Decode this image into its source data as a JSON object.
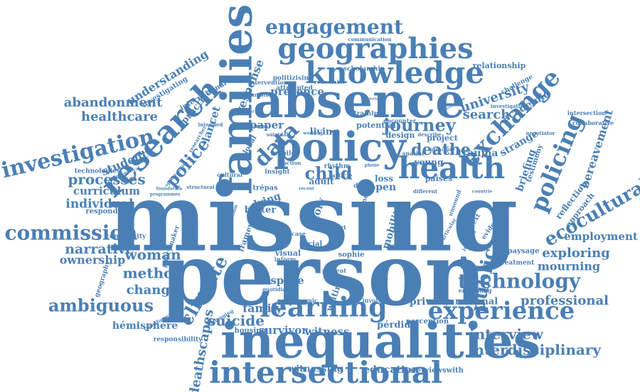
{
  "colors": {
    "primary": "#4a7fb5",
    "background": "#ffffff"
  },
  "words": [
    {
      "text": "missing",
      "weight": 100
    },
    {
      "text": "person",
      "weight": 96
    },
    {
      "text": "inequalities",
      "weight": 70
    },
    {
      "text": "absence",
      "weight": 64
    },
    {
      "text": "families",
      "weight": 62
    },
    {
      "text": "policy",
      "weight": 55
    },
    {
      "text": "research",
      "weight": 50
    },
    {
      "text": "intersectional",
      "weight": 46
    },
    {
      "text": "knowledge",
      "weight": 44
    },
    {
      "text": "geographies",
      "weight": 42
    },
    {
      "text": "health",
      "weight": 40
    },
    {
      "text": "learning",
      "weight": 40
    },
    {
      "text": "investigation",
      "weight": 38
    },
    {
      "text": "experience",
      "weight": 38
    },
    {
      "text": "policing",
      "weight": 36
    },
    {
      "text": "exchange",
      "weight": 36
    },
    {
      "text": "commission",
      "weight": 34
    },
    {
      "text": "engagement",
      "weight": 32
    },
    {
      "text": "technology",
      "weight": 32
    },
    {
      "text": "ecocultural",
      "weight": 30
    },
    {
      "text": "climate",
      "weight": 30
    },
    {
      "text": "data",
      "weight": 30
    },
    {
      "text": "police",
      "weight": 28
    },
    {
      "text": "public",
      "weight": 28
    },
    {
      "text": "child",
      "weight": 28
    },
    {
      "text": "journey",
      "weight": 26
    },
    {
      "text": "ambiguous",
      "weight": 26
    },
    {
      "text": "woman",
      "weight": 26
    },
    {
      "text": "deathe",
      "weight": 26
    },
    {
      "text": "interdisciplinary",
      "weight": 24
    },
    {
      "text": "suicide",
      "weight": 24
    },
    {
      "text": "interview",
      "weight": 24
    },
    {
      "text": "abandonment",
      "weight": 22
    },
    {
      "text": "processes",
      "weight": 22
    },
    {
      "text": "narrative",
      "weight": 22
    },
    {
      "text": "method",
      "weight": 22
    },
    {
      "text": "change",
      "weight": 22
    },
    {
      "text": "healthcare",
      "weight": 22
    },
    {
      "text": "professional",
      "weight": 22
    },
    {
      "text": "exploring",
      "weight": 22
    },
    {
      "text": "mourning",
      "weight": 20
    },
    {
      "text": "search",
      "weight": 20
    },
    {
      "text": "university",
      "weight": 20
    },
    {
      "text": "deathscapes",
      "weight": 20
    },
    {
      "text": "understanding",
      "weight": 20
    },
    {
      "text": "ownership",
      "weight": 20
    },
    {
      "text": "individual",
      "weight": 20
    },
    {
      "text": "family",
      "weight": 20
    },
    {
      "text": "bereavement",
      "weight": 20
    },
    {
      "text": "response",
      "weight": 20
    },
    {
      "text": "student",
      "weight": 20
    },
    {
      "text": "survivor",
      "weight": 18
    },
    {
      "text": "presence",
      "weight": 18
    },
    {
      "text": "employment",
      "weight": 18
    },
    {
      "text": "witness",
      "weight": 18
    },
    {
      "text": "curriculum",
      "weight": 18
    },
    {
      "text": "paper",
      "weight": 18
    },
    {
      "text": "living",
      "weight": 18
    },
    {
      "text": "briefing",
      "weight": 18
    },
    {
      "text": "lancet",
      "weight": 18
    },
    {
      "text": "mobility",
      "weight": 18
    },
    {
      "text": "space",
      "weight": 18
    },
    {
      "text": "education",
      "weight": 18
    },
    {
      "text": "privacy",
      "weight": 18
    },
    {
      "text": "trauma",
      "weight": 18
    },
    {
      "text": "strange",
      "weight": 18
    },
    {
      "text": "hémisphère",
      "weight": 16
    },
    {
      "text": "national",
      "weight": 16
    },
    {
      "text": "witnessing",
      "weight": 16
    },
    {
      "text": "dying",
      "weight": 16
    },
    {
      "text": "story",
      "weight": 16
    },
    {
      "text": "open",
      "weight": 16
    },
    {
      "text": "academic",
      "weight": 16
    },
    {
      "text": "young",
      "weight": 14
    },
    {
      "text": "practice",
      "weight": 14
    },
    {
      "text": "relationship",
      "weight": 14
    },
    {
      "text": "reflection",
      "weight": 14
    },
    {
      "text": "approach",
      "weight": 14
    },
    {
      "text": "pérdida",
      "weight": 14
    },
    {
      "text": "writing",
      "weight": 14
    },
    {
      "text": "better",
      "weight": 14
    },
    {
      "text": "adult",
      "weight": 14
    },
    {
      "text": "loss",
      "weight": 14
    },
    {
      "text": "paises",
      "weight": 14
    },
    {
      "text": "framework",
      "weight": 12
    },
    {
      "text": "social",
      "weight": 12
    },
    {
      "text": "visual",
      "weight": 12
    },
    {
      "text": "sophie",
      "weight": 12
    },
    {
      "text": "design",
      "weight": 12
    },
    {
      "text": "potential",
      "weight": 12
    },
    {
      "text": "project",
      "weight": 12
    },
    {
      "text": "perception",
      "weight": 12
    },
    {
      "text": "interviewswith",
      "weight": 10
    },
    {
      "text": "responding",
      "weight": 12
    },
    {
      "text": "paysage",
      "weight": 12
    },
    {
      "text": "treatment",
      "weight": 10
    },
    {
      "text": "testimony",
      "weight": 12
    },
    {
      "text": "collaborative",
      "weight": 10
    },
    {
      "text": "intersection",
      "weight": 10
    },
    {
      "text": "challenge",
      "weight": 10
    },
    {
      "text": "investigative",
      "weight": 8
    },
    {
      "text": "scholarship",
      "weight": 10
    },
    {
      "text": "politizising",
      "weight": 10
    },
    {
      "text": "attempted",
      "weight": 10
    },
    {
      "text": "intervention",
      "weight": 10
    },
    {
      "text": "roundtable",
      "weight": 8
    },
    {
      "text": "communication",
      "weight": 8
    },
    {
      "text": "international",
      "weight": 12
    },
    {
      "text": "investigating",
      "weight": 10
    },
    {
      "text": "technologies",
      "weight": 10
    },
    {
      "text": "community",
      "weight": 10
    },
    {
      "text": "geography",
      "weight": 10
    },
    {
      "text": "policymaker",
      "weight": 10
    },
    {
      "text": "responsibility",
      "weight": 10
    },
    {
      "text": "transformative",
      "weight": 8
    },
    {
      "text": "housing",
      "weight": 12
    },
    {
      "text": "challenging",
      "weight": 8
    },
    {
      "text": "quotidian",
      "weight": 8
    },
    {
      "text": "dynamic",
      "weight": 10
    },
    {
      "text": "involving",
      "weight": 10
    },
    {
      "text": "present",
      "weight": 10
    },
    {
      "text": "enlivening",
      "weight": 10
    },
    {
      "text": "evidence",
      "weight": 12
    },
    {
      "text": "negotiator",
      "weight": 8
    },
    {
      "text": "global",
      "weight": 12
    },
    {
      "text": "trépas",
      "weight": 12
    },
    {
      "text": "cultural",
      "weight": 10
    },
    {
      "text": "structural",
      "weight": 8
    },
    {
      "text": "researcher",
      "weight": 8
    },
    {
      "text": "business",
      "weight": 8
    },
    {
      "text": "suicidal",
      "weight": 8
    },
    {
      "text": "intended",
      "weight": 8
    },
    {
      "text": "searching",
      "weight": 8
    },
    {
      "text": "training",
      "weight": 10
    },
    {
      "text": "mobile",
      "weight": 10
    },
    {
      "text": "rhythm",
      "weight": 10
    },
    {
      "text": "insight",
      "weight": 10
    },
    {
      "text": "action",
      "weight": 8
    },
    {
      "text": "article",
      "weight": 10
    },
    {
      "text": "phone",
      "weight": 8
    },
    {
      "text": "deuil",
      "weight": 10
    },
    {
      "text": "morir",
      "weight": 10
    },
    {
      "text": "mort",
      "weight": 10
    },
    {
      "text": "inform",
      "weight": 10
    },
    {
      "text": "case",
      "weight": 10
    },
    {
      "text": "talk",
      "weight": 10
    },
    {
      "text": "encounter",
      "weight": 10
    },
    {
      "text": "describe",
      "weight": 8
    },
    {
      "text": "spatial",
      "weight": 10
    },
    {
      "text": "principle",
      "weight": 8
    },
    {
      "text": "provide",
      "weight": 8
    },
    {
      "text": "different",
      "weight": 8
    },
    {
      "text": "unsound",
      "weight": 10
    },
    {
      "text": "context",
      "weight": 10
    },
    {
      "text": "involved",
      "weight": 8
    },
    {
      "text": "particular",
      "weight": 8
    },
    {
      "text": "countrie",
      "weight": 8
    },
    {
      "text": "foundation",
      "weight": 8
    },
    {
      "text": "programmes",
      "weight": 8
    },
    {
      "text": "opportunities",
      "weight": 8
    },
    {
      "text": "geographical",
      "weight": 8
    },
    {
      "text": "recent",
      "weight": 8
    },
    {
      "text": "convention",
      "weight": 8
    },
    {
      "text": "additional",
      "weight": 6
    },
    {
      "text": "occupation",
      "weight": 6
    },
    {
      "text": "working",
      "weight": 8
    },
    {
      "text": "resolution",
      "weight": 6
    }
  ]
}
